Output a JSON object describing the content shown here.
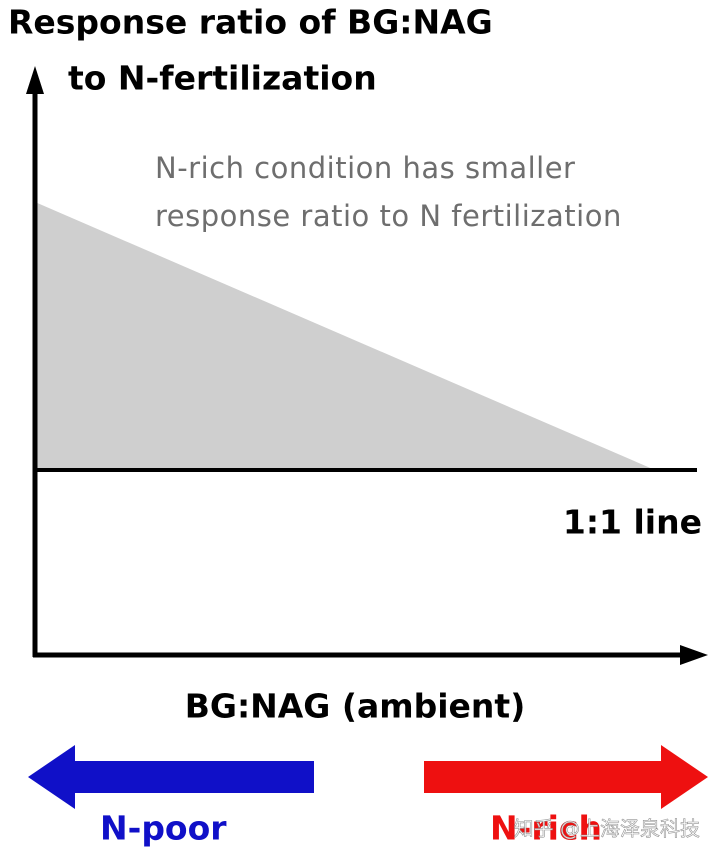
{
  "title": {
    "lines": [
      "Response ratio of BG:NAG",
      "to N-fertilization"
    ]
  },
  "annotation": {
    "lines": [
      "N-rich condition has smaller",
      "response ratio to N fertilization"
    ]
  },
  "reference_line": {
    "label": "1:1 line"
  },
  "x_axis": {
    "label": "BG:NAG (ambient)"
  },
  "arrows": {
    "left": {
      "label": "N-poor"
    },
    "right": {
      "label": "N-rich"
    }
  },
  "watermark": "知乎 @上海泽泉科技"
}
